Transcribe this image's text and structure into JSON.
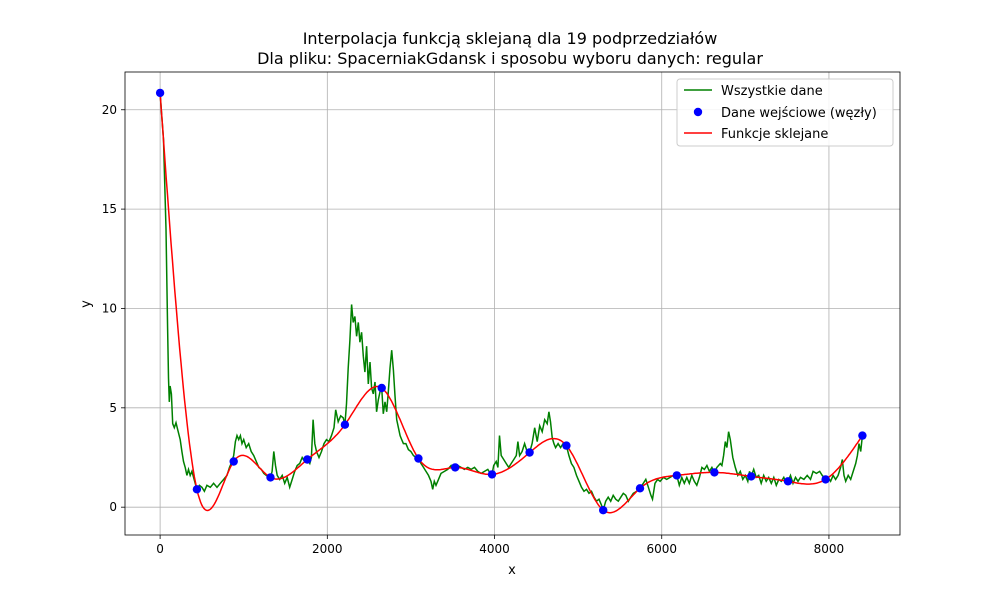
{
  "chart_data": {
    "type": "line",
    "title_line1": "Interpolacja funkcją sklejaną dla 19 podprzedziałów",
    "title_line2": "Dla pliku: SpacerniakGdansk i sposobu wyboru danych: regular",
    "xlabel": "x",
    "ylabel": "y",
    "xlim": [
      -420,
      8850
    ],
    "ylim": [
      -1.4,
      21.9
    ],
    "x_ticks": [
      0,
      2000,
      4000,
      6000,
      8000
    ],
    "y_ticks": [
      0,
      5,
      10,
      15,
      20
    ],
    "grid": true,
    "legend_position": "top-right",
    "legend": {
      "all_data": "Wszystkie dane",
      "nodes": "Dane wejściowe (węzły)",
      "spline": "Funkcje sklejane"
    },
    "colors": {
      "all_data": "#008000",
      "nodes": "#0000ff",
      "spline": "#ff0000"
    },
    "nodes": [
      [
        0,
        20.85
      ],
      [
        440,
        0.9
      ],
      [
        880,
        2.3
      ],
      [
        1320,
        1.5
      ],
      [
        1760,
        2.4
      ],
      [
        2210,
        4.15
      ],
      [
        2650,
        6.0
      ],
      [
        3090,
        2.45
      ],
      [
        3530,
        2.0
      ],
      [
        3970,
        1.65
      ],
      [
        4420,
        2.75
      ],
      [
        4860,
        3.1
      ],
      [
        5300,
        -0.15
      ],
      [
        5740,
        0.95
      ],
      [
        6180,
        1.6
      ],
      [
        6630,
        1.75
      ],
      [
        7070,
        1.55
      ],
      [
        7510,
        1.3
      ],
      [
        7960,
        1.4
      ],
      [
        8400,
        3.6
      ]
    ],
    "all_data": [
      [
        0,
        20.85
      ],
      [
        40,
        18.5
      ],
      [
        70,
        14.0
      ],
      [
        90,
        9.0
      ],
      [
        100,
        6.5
      ],
      [
        110,
        5.3
      ],
      [
        120,
        6.1
      ],
      [
        135,
        5.7
      ],
      [
        150,
        4.2
      ],
      [
        170,
        4.0
      ],
      [
        190,
        4.25
      ],
      [
        210,
        3.9
      ],
      [
        240,
        3.4
      ],
      [
        260,
        2.8
      ],
      [
        280,
        2.3
      ],
      [
        300,
        2.0
      ],
      [
        320,
        1.6
      ],
      [
        340,
        1.9
      ],
      [
        360,
        1.6
      ],
      [
        380,
        1.8
      ],
      [
        400,
        1.5
      ],
      [
        420,
        1.2
      ],
      [
        440,
        0.9
      ],
      [
        470,
        1.1
      ],
      [
        500,
        1.0
      ],
      [
        530,
        0.8
      ],
      [
        560,
        1.1
      ],
      [
        600,
        1.0
      ],
      [
        640,
        1.2
      ],
      [
        680,
        1.0
      ],
      [
        720,
        1.2
      ],
      [
        760,
        1.4
      ],
      [
        800,
        1.6
      ],
      [
        830,
        2.0
      ],
      [
        860,
        2.3
      ],
      [
        880,
        2.6
      ],
      [
        900,
        3.3
      ],
      [
        920,
        3.6
      ],
      [
        940,
        3.4
      ],
      [
        960,
        3.6
      ],
      [
        980,
        3.2
      ],
      [
        1000,
        3.4
      ],
      [
        1030,
        3.0
      ],
      [
        1060,
        3.2
      ],
      [
        1090,
        2.8
      ],
      [
        1120,
        2.6
      ],
      [
        1150,
        2.3
      ],
      [
        1180,
        2.0
      ],
      [
        1210,
        1.9
      ],
      [
        1240,
        1.7
      ],
      [
        1270,
        1.6
      ],
      [
        1300,
        1.5
      ],
      [
        1320,
        1.5
      ],
      [
        1340,
        1.8
      ],
      [
        1360,
        2.8
      ],
      [
        1380,
        2.1
      ],
      [
        1400,
        1.6
      ],
      [
        1430,
        1.4
      ],
      [
        1460,
        1.6
      ],
      [
        1490,
        1.2
      ],
      [
        1520,
        1.5
      ],
      [
        1550,
        1.0
      ],
      [
        1580,
        1.4
      ],
      [
        1610,
        1.8
      ],
      [
        1640,
        2.1
      ],
      [
        1670,
        2.2
      ],
      [
        1700,
        2.5
      ],
      [
        1730,
        2.3
      ],
      [
        1760,
        2.4
      ],
      [
        1790,
        2.2
      ],
      [
        1810,
        2.5
      ],
      [
        1830,
        4.4
      ],
      [
        1850,
        3.2
      ],
      [
        1870,
        2.8
      ],
      [
        1900,
        2.5
      ],
      [
        1930,
        2.8
      ],
      [
        1960,
        3.2
      ],
      [
        1990,
        3.4
      ],
      [
        2020,
        3.3
      ],
      [
        2050,
        3.6
      ],
      [
        2080,
        4.0
      ],
      [
        2100,
        4.9
      ],
      [
        2130,
        4.3
      ],
      [
        2160,
        4.6
      ],
      [
        2190,
        4.5
      ],
      [
        2210,
        4.15
      ],
      [
        2230,
        5.2
      ],
      [
        2250,
        7.0
      ],
      [
        2270,
        8.4
      ],
      [
        2290,
        10.2
      ],
      [
        2310,
        9.3
      ],
      [
        2330,
        9.6
      ],
      [
        2350,
        8.6
      ],
      [
        2370,
        9.3
      ],
      [
        2390,
        8.3
      ],
      [
        2410,
        8.8
      ],
      [
        2430,
        7.6
      ],
      [
        2450,
        6.8
      ],
      [
        2470,
        8.1
      ],
      [
        2490,
        6.2
      ],
      [
        2510,
        7.3
      ],
      [
        2530,
        6.0
      ],
      [
        2550,
        5.7
      ],
      [
        2570,
        6.3
      ],
      [
        2590,
        4.8
      ],
      [
        2610,
        5.4
      ],
      [
        2630,
        5.8
      ],
      [
        2650,
        6.0
      ],
      [
        2670,
        4.7
      ],
      [
        2690,
        5.3
      ],
      [
        2710,
        4.8
      ],
      [
        2730,
        5.8
      ],
      [
        2750,
        7.0
      ],
      [
        2770,
        7.9
      ],
      [
        2790,
        6.9
      ],
      [
        2810,
        5.6
      ],
      [
        2830,
        4.4
      ],
      [
        2850,
        4.0
      ],
      [
        2870,
        3.6
      ],
      [
        2890,
        3.4
      ],
      [
        2910,
        3.2
      ],
      [
        2940,
        3.2
      ],
      [
        2970,
        2.9
      ],
      [
        3000,
        2.8
      ],
      [
        3030,
        2.6
      ],
      [
        3060,
        2.5
      ],
      [
        3090,
        2.45
      ],
      [
        3120,
        2.2
      ],
      [
        3150,
        2.0
      ],
      [
        3180,
        1.8
      ],
      [
        3210,
        1.6
      ],
      [
        3240,
        1.3
      ],
      [
        3260,
        0.9
      ],
      [
        3280,
        1.3
      ],
      [
        3300,
        1.1
      ],
      [
        3330,
        1.4
      ],
      [
        3360,
        1.7
      ],
      [
        3400,
        1.8
      ],
      [
        3440,
        1.9
      ],
      [
        3480,
        2.1
      ],
      [
        3500,
        1.9
      ],
      [
        3530,
        2.0
      ],
      [
        3560,
        2.1
      ],
      [
        3600,
        2.0
      ],
      [
        3640,
        1.9
      ],
      [
        3680,
        2.0
      ],
      [
        3720,
        1.9
      ],
      [
        3760,
        2.0
      ],
      [
        3800,
        1.8
      ],
      [
        3840,
        1.7
      ],
      [
        3880,
        1.8
      ],
      [
        3920,
        1.9
      ],
      [
        3950,
        1.7
      ],
      [
        3970,
        1.65
      ],
      [
        3990,
        2.1
      ],
      [
        4020,
        2.3
      ],
      [
        4040,
        2.0
      ],
      [
        4060,
        3.6
      ],
      [
        4080,
        2.6
      ],
      [
        4110,
        2.4
      ],
      [
        4140,
        2.2
      ],
      [
        4170,
        2.0
      ],
      [
        4200,
        2.2
      ],
      [
        4230,
        2.4
      ],
      [
        4260,
        2.6
      ],
      [
        4280,
        3.3
      ],
      [
        4300,
        2.6
      ],
      [
        4330,
        2.8
      ],
      [
        4360,
        3.2
      ],
      [
        4390,
        2.8
      ],
      [
        4420,
        2.75
      ],
      [
        4450,
        3.2
      ],
      [
        4480,
        4.0
      ],
      [
        4510,
        3.3
      ],
      [
        4540,
        4.1
      ],
      [
        4570,
        3.8
      ],
      [
        4600,
        4.4
      ],
      [
        4630,
        4.2
      ],
      [
        4650,
        4.8
      ],
      [
        4670,
        4.3
      ],
      [
        4690,
        3.5
      ],
      [
        4710,
        3.2
      ],
      [
        4730,
        3.0
      ],
      [
        4760,
        3.2
      ],
      [
        4790,
        3.0
      ],
      [
        4820,
        3.2
      ],
      [
        4850,
        3.1
      ],
      [
        4860,
        3.1
      ],
      [
        4890,
        2.6
      ],
      [
        4920,
        2.2
      ],
      [
        4950,
        2.0
      ],
      [
        4980,
        1.6
      ],
      [
        5010,
        1.3
      ],
      [
        5040,
        1.0
      ],
      [
        5070,
        0.8
      ],
      [
        5100,
        0.9
      ],
      [
        5130,
        0.7
      ],
      [
        5160,
        0.8
      ],
      [
        5190,
        0.5
      ],
      [
        5220,
        0.3
      ],
      [
        5250,
        0.4
      ],
      [
        5280,
        0.1
      ],
      [
        5300,
        -0.15
      ],
      [
        5330,
        0.3
      ],
      [
        5360,
        0.5
      ],
      [
        5390,
        0.3
      ],
      [
        5420,
        0.6
      ],
      [
        5450,
        0.4
      ],
      [
        5480,
        0.3
      ],
      [
        5510,
        0.5
      ],
      [
        5540,
        0.7
      ],
      [
        5570,
        0.6
      ],
      [
        5600,
        0.3
      ],
      [
        5630,
        0.5
      ],
      [
        5660,
        0.7
      ],
      [
        5700,
        0.8
      ],
      [
        5740,
        0.95
      ],
      [
        5780,
        1.2
      ],
      [
        5810,
        1.4
      ],
      [
        5840,
        1.0
      ],
      [
        5870,
        0.6
      ],
      [
        5890,
        0.4
      ],
      [
        5920,
        1.2
      ],
      [
        5950,
        1.4
      ],
      [
        5980,
        1.3
      ],
      [
        6020,
        1.5
      ],
      [
        6060,
        1.4
      ],
      [
        6100,
        1.5
      ],
      [
        6140,
        1.6
      ],
      [
        6180,
        1.6
      ],
      [
        6210,
        1.1
      ],
      [
        6240,
        1.5
      ],
      [
        6270,
        1.2
      ],
      [
        6300,
        1.5
      ],
      [
        6330,
        1.2
      ],
      [
        6360,
        1.6
      ],
      [
        6390,
        1.3
      ],
      [
        6420,
        1.1
      ],
      [
        6450,
        1.5
      ],
      [
        6480,
        2.0
      ],
      [
        6510,
        1.9
      ],
      [
        6540,
        2.1
      ],
      [
        6570,
        1.8
      ],
      [
        6600,
        2.0
      ],
      [
        6630,
        1.75
      ],
      [
        6660,
        2.0
      ],
      [
        6700,
        2.2
      ],
      [
        6720,
        2.1
      ],
      [
        6740,
        2.6
      ],
      [
        6760,
        3.3
      ],
      [
        6780,
        3.0
      ],
      [
        6800,
        3.8
      ],
      [
        6820,
        3.4
      ],
      [
        6850,
        2.5
      ],
      [
        6880,
        2.0
      ],
      [
        6910,
        1.6
      ],
      [
        6940,
        1.8
      ],
      [
        6970,
        1.4
      ],
      [
        7000,
        1.6
      ],
      [
        7030,
        1.3
      ],
      [
        7050,
        1.8
      ],
      [
        7070,
        1.55
      ],
      [
        7100,
        1.9
      ],
      [
        7130,
        1.5
      ],
      [
        7160,
        1.6
      ],
      [
        7190,
        1.2
      ],
      [
        7220,
        1.6
      ],
      [
        7250,
        1.3
      ],
      [
        7280,
        1.5
      ],
      [
        7310,
        1.2
      ],
      [
        7340,
        1.5
      ],
      [
        7370,
        1.1
      ],
      [
        7400,
        1.4
      ],
      [
        7430,
        1.3
      ],
      [
        7460,
        1.5
      ],
      [
        7490,
        1.2
      ],
      [
        7510,
        1.3
      ],
      [
        7540,
        1.6
      ],
      [
        7570,
        1.2
      ],
      [
        7600,
        1.5
      ],
      [
        7630,
        1.3
      ],
      [
        7660,
        1.5
      ],
      [
        7700,
        1.4
      ],
      [
        7740,
        1.6
      ],
      [
        7780,
        1.4
      ],
      [
        7810,
        1.8
      ],
      [
        7850,
        1.7
      ],
      [
        7890,
        1.8
      ],
      [
        7920,
        1.6
      ],
      [
        7960,
        1.4
      ],
      [
        7990,
        1.5
      ],
      [
        8020,
        1.3
      ],
      [
        8050,
        1.6
      ],
      [
        8080,
        1.4
      ],
      [
        8110,
        1.6
      ],
      [
        8140,
        2.0
      ],
      [
        8160,
        2.4
      ],
      [
        8180,
        1.6
      ],
      [
        8200,
        1.3
      ],
      [
        8230,
        1.6
      ],
      [
        8260,
        1.4
      ],
      [
        8290,
        1.8
      ],
      [
        8320,
        2.2
      ],
      [
        8340,
        2.6
      ],
      [
        8360,
        3.2
      ],
      [
        8380,
        2.8
      ],
      [
        8400,
        3.6
      ]
    ]
  }
}
